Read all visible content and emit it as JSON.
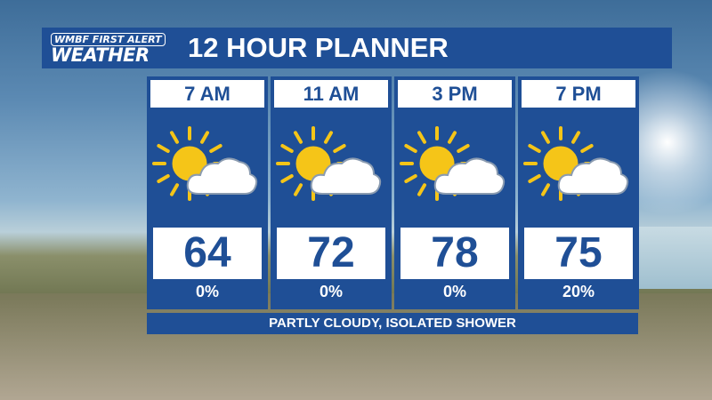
{
  "header": {
    "logo_line1": "WMBF FIRST ALERT",
    "logo_line2": "WEATHER",
    "title": "12 HOUR PLANNER"
  },
  "colors": {
    "panel": "#1f4f96",
    "sun": "#f5c518",
    "cloud": "#ffffff"
  },
  "periods": [
    {
      "time": "7 AM",
      "icon": "partly-cloudy-icon",
      "temp": "64",
      "precip": "0%"
    },
    {
      "time": "11 AM",
      "icon": "partly-cloudy-icon",
      "temp": "72",
      "precip": "0%"
    },
    {
      "time": "3 PM",
      "icon": "partly-cloudy-icon",
      "temp": "78",
      "precip": "0%"
    },
    {
      "time": "7 PM",
      "icon": "partly-cloudy-icon",
      "temp": "75",
      "precip": "20%"
    }
  ],
  "condition": "PARTLY CLOUDY, ISOLATED SHOWER"
}
